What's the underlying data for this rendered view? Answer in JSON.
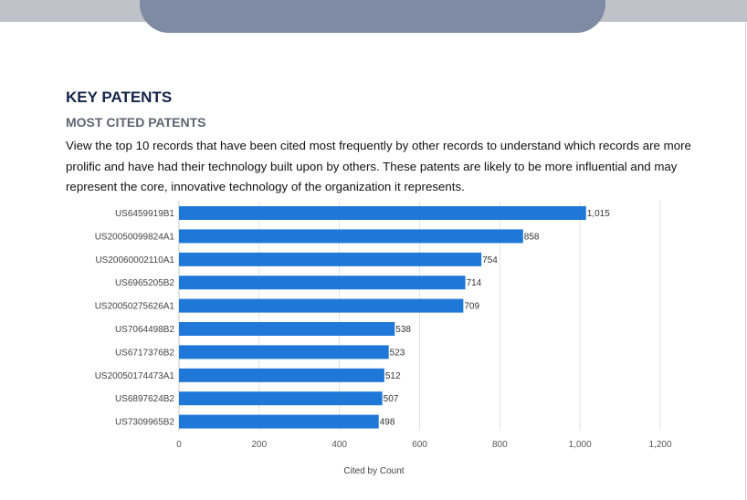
{
  "heading": "KEY PATENTS",
  "subheading": "MOST CITED PATENTS",
  "description": "View the top 10 records that have been cited most frequently by other records to understand which records are more prolific and have had their technology built upon by others. These patents are likely to be more influential and may represent the core, innovative technology of the organization it represents.",
  "chart_data": {
    "type": "bar",
    "orientation": "horizontal",
    "categories": [
      "US6459919B1",
      "US20050099824A1",
      "US20060002110A1",
      "US6965205B2",
      "US20050275626A1",
      "US7064498B2",
      "US6717376B2",
      "US20050174473A1",
      "US6897624B2",
      "US7309965B2"
    ],
    "values": [
      1015,
      858,
      754,
      714,
      709,
      538,
      523,
      512,
      507,
      498
    ],
    "data_labels": [
      "1,015",
      "858",
      "754",
      "714",
      "709",
      "538",
      "523",
      "512",
      "507",
      "498"
    ],
    "xlabel": "Cited by Count",
    "ylabel": "",
    "xlim": [
      0,
      1200
    ],
    "xticks": [
      0,
      200,
      400,
      600,
      800,
      1000,
      1200
    ],
    "xtick_labels": [
      "0",
      "200",
      "400",
      "600",
      "800",
      "1,000",
      "1,200"
    ],
    "grid": true,
    "bar_color": "#1f78d8"
  }
}
